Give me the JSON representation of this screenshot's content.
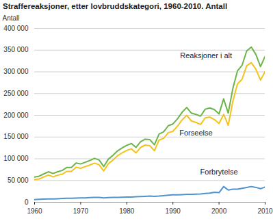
{
  "chart_data": {
    "type": "line",
    "title": "Straffereaksjoner, etter lovbruddskategori, 1960-2010. Antall",
    "y_label": "Antall",
    "x": [
      1960,
      1961,
      1962,
      1963,
      1964,
      1965,
      1966,
      1967,
      1968,
      1969,
      1970,
      1971,
      1972,
      1973,
      1974,
      1975,
      1976,
      1977,
      1978,
      1979,
      1980,
      1981,
      1982,
      1983,
      1984,
      1985,
      1986,
      1987,
      1988,
      1989,
      1990,
      1991,
      1992,
      1993,
      1994,
      1995,
      1996,
      1997,
      1998,
      1999,
      2000,
      2001,
      2002,
      2003,
      2004,
      2005,
      2006,
      2007,
      2008,
      2009,
      2010
    ],
    "series": [
      {
        "name": "Reaksjoner i alt",
        "color": "#6cb44a",
        "values": [
          58000,
          60000,
          65000,
          70000,
          66000,
          70000,
          73000,
          80000,
          80000,
          90000,
          88000,
          92000,
          96000,
          101000,
          97000,
          82000,
          99000,
          108000,
          118000,
          125000,
          131000,
          135000,
          126000,
          139000,
          145000,
          144000,
          132000,
          157000,
          162000,
          176000,
          180000,
          192000,
          207000,
          218000,
          205000,
          202000,
          198000,
          214000,
          217000,
          213000,
          203000,
          238000,
          205000,
          262000,
          302000,
          315000,
          348000,
          357000,
          340000,
          312000,
          336000
        ]
      },
      {
        "name": "Forseelse",
        "color": "#f5c21b",
        "values": [
          52000,
          53500,
          58000,
          62500,
          58500,
          62000,
          64500,
          71000,
          71000,
          80500,
          78000,
          82000,
          85500,
          90000,
          86000,
          72000,
          88500,
          97000,
          107000,
          113500,
          119000,
          123000,
          113500,
          126000,
          131500,
          130000,
          118500,
          143000,
          147000,
          160000,
          163000,
          175000,
          189500,
          200000,
          187000,
          183500,
          179000,
          194000,
          196000,
          190000,
          181000,
          202000,
          177000,
          232000,
          272000,
          283000,
          314000,
          321000,
          306000,
          281000,
          301000
        ]
      },
      {
        "name": "Forbrytelse",
        "color": "#4f93cc",
        "values": [
          6000,
          6500,
          7000,
          7500,
          7500,
          8000,
          8500,
          9000,
          9000,
          9500,
          10000,
          10000,
          10500,
          11000,
          11000,
          10000,
          10500,
          11000,
          11000,
          11500,
          12000,
          12000,
          12500,
          13000,
          13500,
          14000,
          13500,
          14000,
          15000,
          16000,
          17000,
          17000,
          17500,
          18000,
          18000,
          18500,
          19000,
          20000,
          21000,
          23000,
          22000,
          36000,
          28000,
          30000,
          30000,
          32000,
          34000,
          36000,
          34000,
          31000,
          35000
        ]
      }
    ],
    "xlim": [
      1960,
      2010
    ],
    "xticks": [
      1960,
      1970,
      1980,
      1990,
      2000,
      2010
    ],
    "ylim": [
      0,
      400000
    ],
    "yticks": [
      0,
      {
        "value": 50000,
        "label": "50 000"
      },
      {
        "value": 100000,
        "label": "100 000"
      },
      {
        "value": 150000,
        "label": "150 000"
      },
      {
        "value": 200000,
        "label": "200 000"
      },
      {
        "value": 250000,
        "label": "250 000"
      },
      {
        "value": 300000,
        "label": "300 000"
      },
      {
        "value": 350000,
        "label": "350 000"
      },
      {
        "value": 400000,
        "label": "400 000"
      }
    ],
    "grid": true
  }
}
